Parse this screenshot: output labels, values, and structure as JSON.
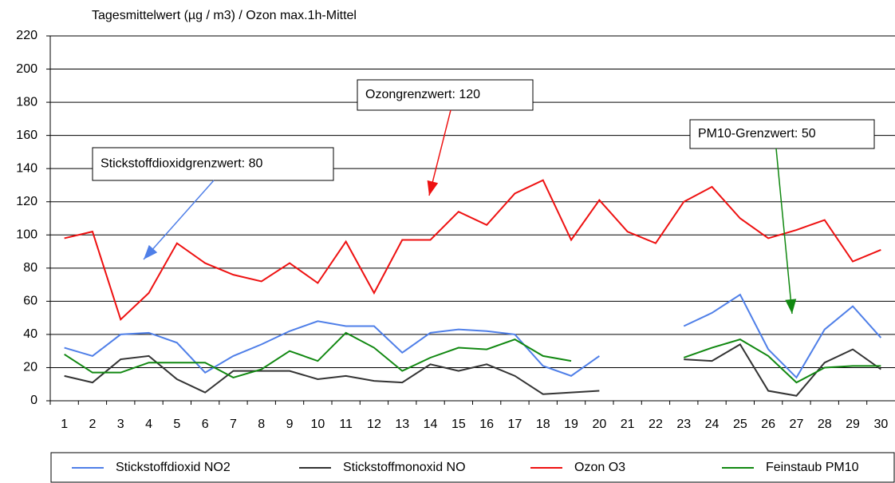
{
  "chart_data": {
    "type": "line",
    "title": "Tagesmittelwert (µg / m3) / Ozon max.1h-Mittel",
    "categories": [
      "1",
      "2",
      "3",
      "4",
      "5",
      "6",
      "7",
      "8",
      "9",
      "10",
      "11",
      "12",
      "13",
      "14",
      "15",
      "16",
      "17",
      "18",
      "19",
      "20",
      "21",
      "22",
      "23",
      "24",
      "25",
      "26",
      "27",
      "28",
      "29",
      "30"
    ],
    "series": [
      {
        "name": "Stickstoffdioxid NO2",
        "color": "#4f7fe8",
        "values": [
          32,
          27,
          40,
          41,
          35,
          17,
          27,
          34,
          42,
          48,
          45,
          45,
          29,
          41,
          43,
          42,
          40,
          21,
          15,
          27,
          null,
          null,
          45,
          53,
          64,
          31,
          14,
          43,
          57,
          38
        ]
      },
      {
        "name": "Stickstoffmonoxid NO",
        "color": "#333333",
        "values": [
          15,
          11,
          25,
          27,
          13,
          5,
          18,
          18,
          18,
          13,
          15,
          12,
          11,
          22,
          18,
          22,
          15,
          4,
          5,
          6,
          null,
          null,
          25,
          24,
          34,
          6,
          3,
          23,
          31,
          19
        ]
      },
      {
        "name": "Ozon O3",
        "color": "#ee1111",
        "values": [
          98,
          102,
          49,
          65,
          95,
          83,
          76,
          72,
          83,
          71,
          96,
          65,
          97,
          97,
          114,
          106,
          125,
          133,
          97,
          121,
          102,
          95,
          120,
          129,
          110,
          98,
          103,
          109,
          84,
          91
        ]
      },
      {
        "name": "Feinstaub PM10",
        "color": "#118811",
        "values": [
          28,
          17,
          17,
          23,
          23,
          23,
          14,
          19,
          30,
          24,
          41,
          32,
          18,
          26,
          32,
          31,
          37,
          27,
          24,
          null,
          null,
          null,
          26,
          32,
          37,
          27,
          11,
          20,
          21,
          21
        ]
      }
    ],
    "annotations": [
      "Stickstoffdioxidgrenzwert: 80",
      "Ozongrenzwert: 120",
      "PM10-Grenzwert: 50"
    ],
    "ylim": [
      0,
      220
    ],
    "yticks": [
      0,
      20,
      40,
      60,
      80,
      100,
      120,
      140,
      160,
      180,
      200,
      220
    ],
    "grid": true,
    "legend": "bottom"
  }
}
